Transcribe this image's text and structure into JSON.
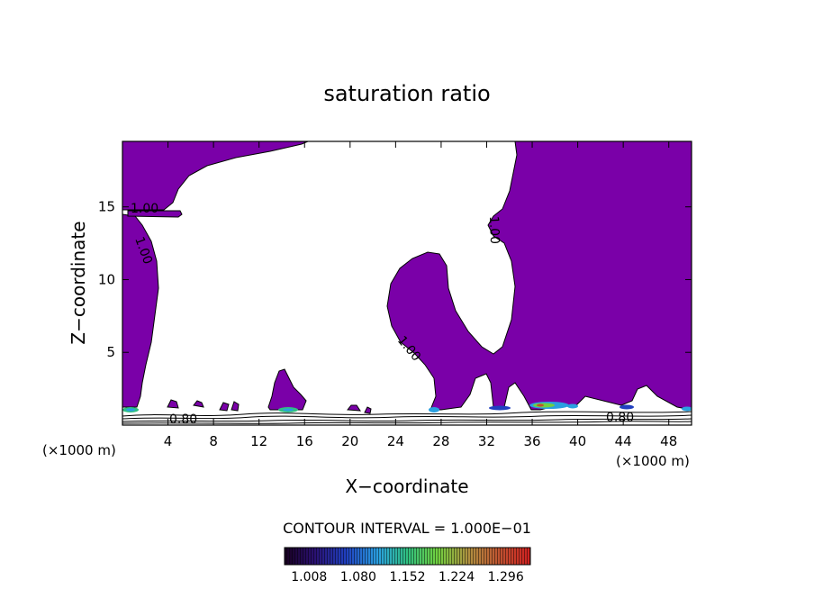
{
  "chart_data": {
    "type": "contour",
    "title": "saturation ratio",
    "xlabel": "X−coordinate",
    "ylabel": "Z−coordinate",
    "x_unit_left": "(×1000 m)",
    "x_unit_right": "(×1000 m)",
    "x_ticks": [
      4,
      8,
      12,
      16,
      20,
      24,
      28,
      32,
      36,
      40,
      44,
      48
    ],
    "y_ticks": [
      5,
      10,
      15
    ],
    "xlim": [
      0,
      50
    ],
    "ylim": [
      0,
      19.5
    ],
    "contour_interval_text": "CONTOUR INTERVAL = 1.000E−01",
    "contour_labels": [
      {
        "text": "1.00",
        "x": 2.3,
        "z": 15.2
      },
      {
        "text": "1.00",
        "x": 2.1,
        "z": 12.5
      },
      {
        "text": "1.00",
        "x": 32.8,
        "z": 13.7
      },
      {
        "text": "1.00",
        "x": 25.0,
        "z": 5.3
      },
      {
        "text": "0.80",
        "x": 6.0,
        "z": 0.4
      },
      {
        "text": "0.80",
        "x": 44.5,
        "z": 0.6
      }
    ],
    "colorbar_ticks": [
      "1.008",
      "1.080",
      "1.152",
      "1.224",
      "1.296"
    ],
    "colorbar_range": [
      0.972,
      1.332
    ],
    "colors": {
      "saturated_fill": "#7a00a8",
      "colorbar_stops": [
        "#180020",
        "#2a1070",
        "#2040c0",
        "#2aa0e0",
        "#30c080",
        "#70d040",
        "#b09040",
        "#c05030",
        "#d02020"
      ]
    }
  }
}
